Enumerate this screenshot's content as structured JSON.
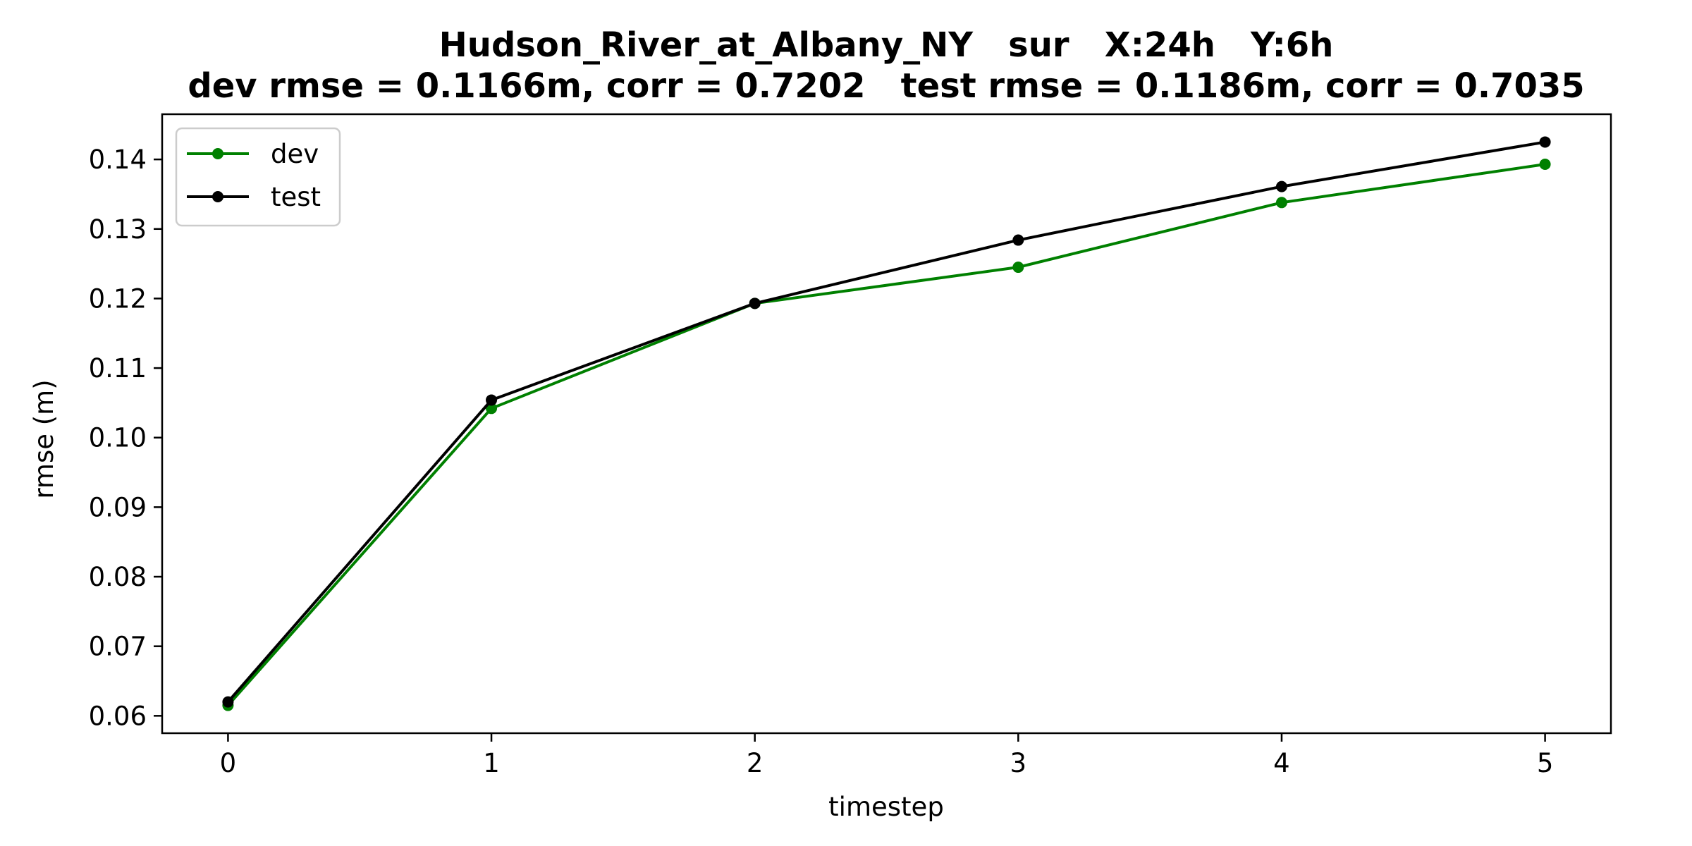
{
  "chart_data": {
    "type": "line",
    "title": "Hudson_River_at_Albany_NY   sur   X:24h   Y:6h",
    "subtitle": "dev rmse = 0.1166m, corr = 0.7202   test rmse = 0.1186m, corr = 0.7035",
    "xlabel": "timestep",
    "ylabel": "rmse (m)",
    "xlim": [
      -0.25,
      5.25
    ],
    "ylim": [
      0.0575,
      0.1465
    ],
    "x_ticks": [
      0,
      1,
      2,
      3,
      4,
      5
    ],
    "y_ticks": [
      0.06,
      0.07,
      0.08,
      0.09,
      0.1,
      0.11,
      0.12,
      0.13,
      0.14
    ],
    "y_tick_labels": [
      "0.06",
      "0.07",
      "0.08",
      "0.09",
      "0.10",
      "0.11",
      "0.12",
      "0.13",
      "0.14"
    ],
    "grid": false,
    "legend_position": "top-left",
    "x": [
      0,
      1,
      2,
      3,
      4,
      5
    ],
    "series": [
      {
        "name": "dev",
        "color": "#008000",
        "values": [
          0.0615,
          0.1042,
          0.1193,
          0.1245,
          0.1338,
          0.1393
        ]
      },
      {
        "name": "test",
        "color": "#000000",
        "values": [
          0.062,
          0.1054,
          0.1193,
          0.1284,
          0.1361,
          0.1425
        ]
      }
    ]
  }
}
